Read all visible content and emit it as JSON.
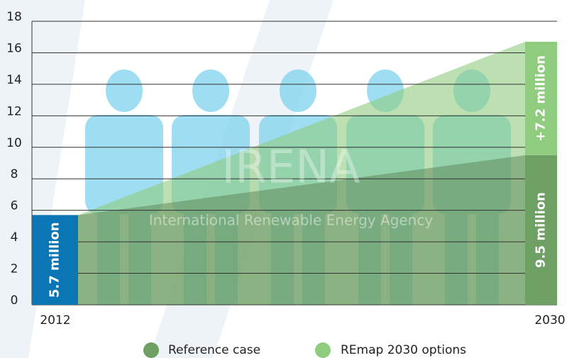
{
  "chart_data": {
    "type": "stacked-bar-area",
    "categories": [
      "2012",
      "2030"
    ],
    "series": [
      {
        "name": "Reference case",
        "color": "#6e9f63",
        "point_colors": [
          "#0b76b4",
          "#6e9f63"
        ],
        "values": [
          5.7,
          9.5
        ],
        "value_labels": [
          "5.7 million",
          "9.5 million"
        ]
      },
      {
        "name": "REmap 2030 options",
        "color": "#8fcc7d",
        "values": [
          null,
          7.2
        ],
        "value_labels": [
          null,
          "+7.2 million"
        ]
      }
    ],
    "ylim": [
      0,
      18
    ],
    "yticks": [
      0,
      2,
      4,
      6,
      8,
      10,
      12,
      14,
      16,
      18
    ],
    "grid": true,
    "watermark": {
      "title": "IRENA",
      "subtitle": "International Renewable Energy Agency"
    }
  }
}
